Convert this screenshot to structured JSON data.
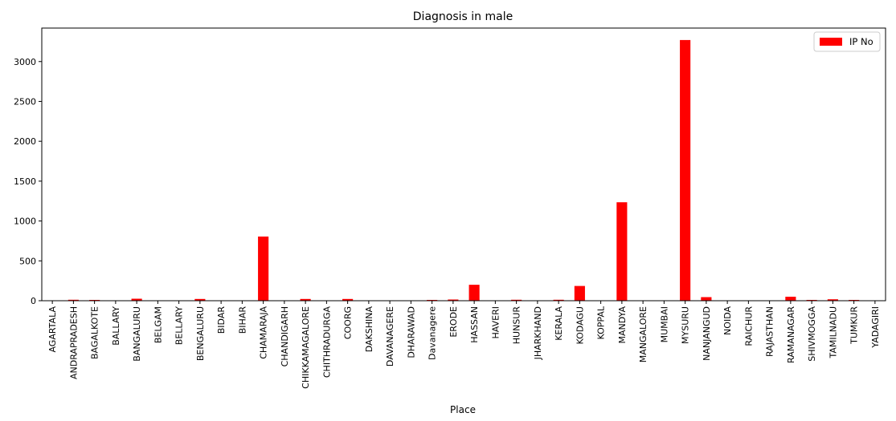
{
  "chart_data": {
    "type": "bar",
    "title": "Diagnosis in male",
    "xlabel": "Place",
    "ylabel": "",
    "ylim": [
      0,
      3420
    ],
    "yticks": [
      0,
      500,
      1000,
      1500,
      2000,
      2500,
      3000
    ],
    "bar_color": "#ff0000",
    "legend_position": "top-right",
    "categories": [
      "AGARTALA",
      "ANDRAPRADESH",
      "BAGALKOTE",
      "BALLARY",
      "BANGALURU",
      "BELGAM",
      "BELLARY",
      "BENGALURU",
      "BIDAR",
      "BIHAR",
      "CHAMARAJA",
      "CHANDIGARH",
      "CHIKKAMAGALORE",
      "CHITHRADURGA",
      "COORG",
      "DAKSHINA",
      "DAVANAGERE",
      "DHARAWAD",
      "Davanagere",
      "ERODE",
      "HASSAN",
      "HAVERI",
      "HUNSUR",
      "JHARKHAND",
      "KERALA",
      "KODAGU",
      "KOPPAL",
      "MANDYA",
      "MANGALORE",
      "MUMBAI",
      "MYSURU",
      "NANJANGUD",
      "NOIDA",
      "RAICHUR",
      "RAJASTHAN",
      "RAMANAGAR",
      "SHIVMOGGA",
      "TAMILNADU",
      "TUMKUR",
      "YADAGIRI"
    ],
    "series": [
      {
        "name": "IP No",
        "values": [
          1,
          12,
          10,
          2,
          25,
          3,
          2,
          22,
          2,
          2,
          805,
          2,
          22,
          2,
          22,
          2,
          2,
          2,
          10,
          15,
          200,
          2,
          12,
          3,
          12,
          185,
          2,
          1235,
          3,
          2,
          3270,
          45,
          3,
          2,
          2,
          50,
          10,
          18,
          10,
          2
        ]
      }
    ]
  }
}
